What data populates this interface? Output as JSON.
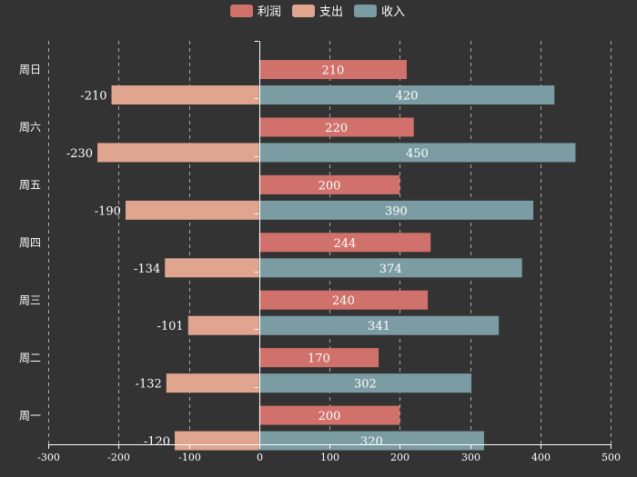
{
  "chart_data": {
    "type": "bar",
    "orientation": "horizontal",
    "categories": [
      "周一",
      "周二",
      "周三",
      "周四",
      "周五",
      "周六",
      "周日"
    ],
    "series": [
      {
        "name": "利润",
        "values": [
          200,
          170,
          240,
          244,
          200,
          220,
          210
        ],
        "color": "#d0716b"
      },
      {
        "name": "支出",
        "values": [
          -120,
          -132,
          -101,
          -134,
          -190,
          -230,
          -210
        ],
        "color": "#e0a58f"
      },
      {
        "name": "收入",
        "values": [
          320,
          302,
          341,
          374,
          390,
          450,
          420
        ],
        "color": "#7b9ca3"
      }
    ],
    "stacked_series": [
      "支出",
      "收入"
    ],
    "xlim": [
      -300,
      500
    ],
    "x_ticks": [
      -300,
      -200,
      -100,
      0,
      100,
      200,
      300,
      400,
      500
    ],
    "grid": "vertical dashed",
    "legend_position": "top-center",
    "title": "",
    "xlabel": "",
    "ylabel": ""
  }
}
